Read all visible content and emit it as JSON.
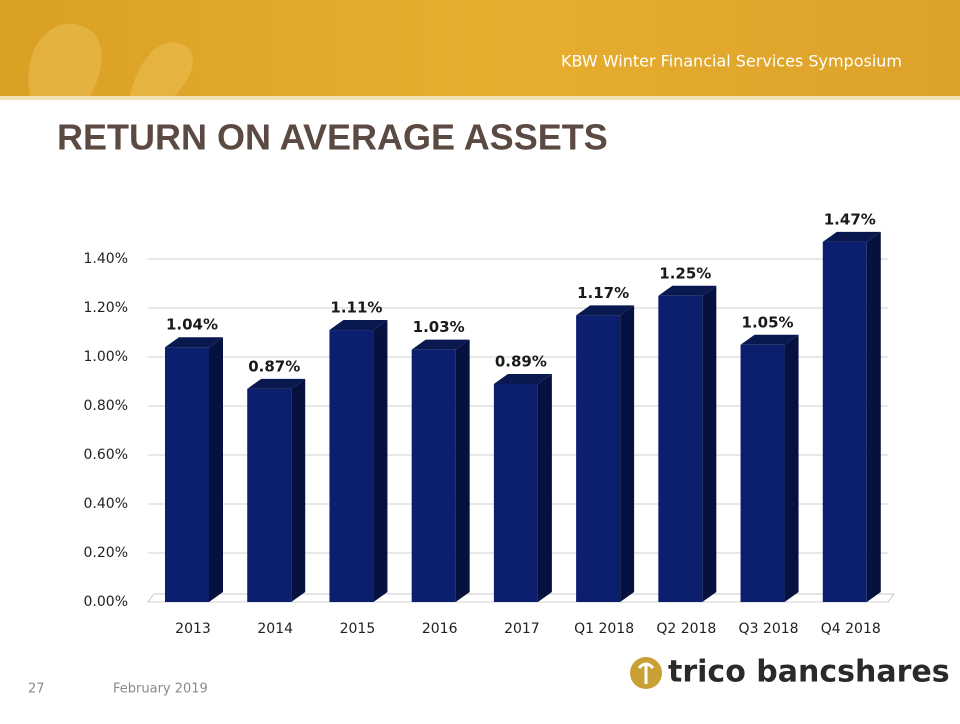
{
  "header": "KBW Winter Financial Services Symposium",
  "footer": {
    "page": "27",
    "date": "February 2019",
    "logo": "trico bancshares"
  },
  "chart_data": {
    "type": "bar3d",
    "title": "RETURN ON AVERAGE ASSETS",
    "categories": [
      "2013",
      "2014",
      "2015",
      "2016",
      "2017",
      "Q1 2018",
      "Q2 2018",
      "Q3 2018",
      "Q4 2018"
    ],
    "values": [
      1.04,
      0.87,
      1.11,
      1.03,
      0.89,
      1.17,
      1.25,
      1.05,
      1.47
    ],
    "value_labels": [
      "1.04%",
      "0.87%",
      "1.11%",
      "1.03%",
      "0.89%",
      "1.17%",
      "1.25%",
      "1.05%",
      "1.47%"
    ],
    "color": "#0c1f6e",
    "ylim": [
      0,
      1.4
    ],
    "yticks": [
      {
        "value": 0,
        "label": "0.00%"
      },
      {
        "value": 0.2,
        "label": "0.20%"
      },
      {
        "value": 0.4,
        "label": "0.40%"
      },
      {
        "value": 0.6,
        "label": "0.60%"
      },
      {
        "value": 0.8,
        "label": "0.80%"
      },
      {
        "value": 1.0,
        "label": "1.00%"
      },
      {
        "value": 1.2,
        "label": "1.20%"
      },
      {
        "value": 1.4,
        "label": "1.40%"
      }
    ],
    "grid": true
  }
}
